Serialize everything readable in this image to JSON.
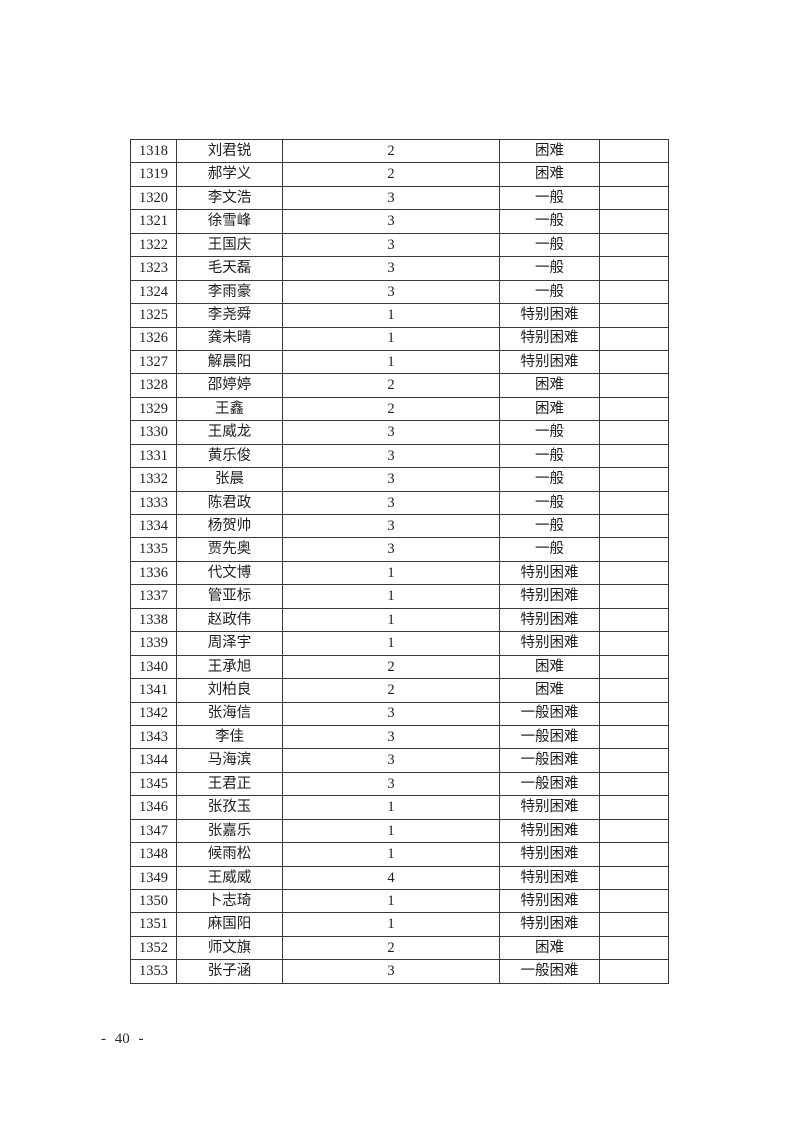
{
  "page": {
    "number_label": "- 40 -"
  },
  "table": {
    "rows": [
      {
        "id": "1318",
        "name": "刘君锐",
        "count": "2",
        "level": "困难",
        "note": ""
      },
      {
        "id": "1319",
        "name": "郝学义",
        "count": "2",
        "level": "困难",
        "note": ""
      },
      {
        "id": "1320",
        "name": "李文浩",
        "count": "3",
        "level": "一般",
        "note": ""
      },
      {
        "id": "1321",
        "name": "徐雪峰",
        "count": "3",
        "level": "一般",
        "note": ""
      },
      {
        "id": "1322",
        "name": "王国庆",
        "count": "3",
        "level": "一般",
        "note": ""
      },
      {
        "id": "1323",
        "name": "毛天磊",
        "count": "3",
        "level": "一般",
        "note": ""
      },
      {
        "id": "1324",
        "name": "李雨豪",
        "count": "3",
        "level": "一般",
        "note": ""
      },
      {
        "id": "1325",
        "name": "李尧舜",
        "count": "1",
        "level": "特别困难",
        "note": ""
      },
      {
        "id": "1326",
        "name": "龚未晴",
        "count": "1",
        "level": "特别困难",
        "note": ""
      },
      {
        "id": "1327",
        "name": "解晨阳",
        "count": "1",
        "level": "特别困难",
        "note": ""
      },
      {
        "id": "1328",
        "name": "邵婷婷",
        "count": "2",
        "level": "困难",
        "note": ""
      },
      {
        "id": "1329",
        "name": "王鑫",
        "count": "2",
        "level": "困难",
        "note": ""
      },
      {
        "id": "1330",
        "name": "王威龙",
        "count": "3",
        "level": "一般",
        "note": ""
      },
      {
        "id": "1331",
        "name": "黄乐俊",
        "count": "3",
        "level": "一般",
        "note": ""
      },
      {
        "id": "1332",
        "name": "张晨",
        "count": "3",
        "level": "一般",
        "note": ""
      },
      {
        "id": "1333",
        "name": "陈君政",
        "count": "3",
        "level": "一般",
        "note": ""
      },
      {
        "id": "1334",
        "name": "杨贺帅",
        "count": "3",
        "level": "一般",
        "note": ""
      },
      {
        "id": "1335",
        "name": "贾先奥",
        "count": "3",
        "level": "一般",
        "note": ""
      },
      {
        "id": "1336",
        "name": "代文博",
        "count": "1",
        "level": "特别困难",
        "note": ""
      },
      {
        "id": "1337",
        "name": "管亚标",
        "count": "1",
        "level": "特别困难",
        "note": ""
      },
      {
        "id": "1338",
        "name": "赵政伟",
        "count": "1",
        "level": "特别困难",
        "note": ""
      },
      {
        "id": "1339",
        "name": "周泽宇",
        "count": "1",
        "level": "特别困难",
        "note": ""
      },
      {
        "id": "1340",
        "name": "王承旭",
        "count": "2",
        "level": "困难",
        "note": ""
      },
      {
        "id": "1341",
        "name": "刘柏良",
        "count": "2",
        "level": "困难",
        "note": ""
      },
      {
        "id": "1342",
        "name": "张海信",
        "count": "3",
        "level": "一般困难",
        "note": ""
      },
      {
        "id": "1343",
        "name": "李佳",
        "count": "3",
        "level": "一般困难",
        "note": ""
      },
      {
        "id": "1344",
        "name": "马海滨",
        "count": "3",
        "level": "一般困难",
        "note": ""
      },
      {
        "id": "1345",
        "name": "王君正",
        "count": "3",
        "level": "一般困难",
        "note": ""
      },
      {
        "id": "1346",
        "name": "张孜玉",
        "count": "1",
        "level": "特别困难",
        "note": ""
      },
      {
        "id": "1347",
        "name": "张嘉乐",
        "count": "1",
        "level": "特别困难",
        "note": ""
      },
      {
        "id": "1348",
        "name": "候雨松",
        "count": "1",
        "level": "特别困难",
        "note": ""
      },
      {
        "id": "1349",
        "name": "王威威",
        "count": "4",
        "level": "特别困难",
        "note": ""
      },
      {
        "id": "1350",
        "name": "卜志琦",
        "count": "1",
        "level": "特别困难",
        "note": ""
      },
      {
        "id": "1351",
        "name": "麻国阳",
        "count": "1",
        "level": "特别困难",
        "note": ""
      },
      {
        "id": "1352",
        "name": "师文旗",
        "count": "2",
        "level": "困难",
        "note": ""
      },
      {
        "id": "1353",
        "name": "张子涵",
        "count": "3",
        "level": "一般困难",
        "note": ""
      }
    ]
  }
}
